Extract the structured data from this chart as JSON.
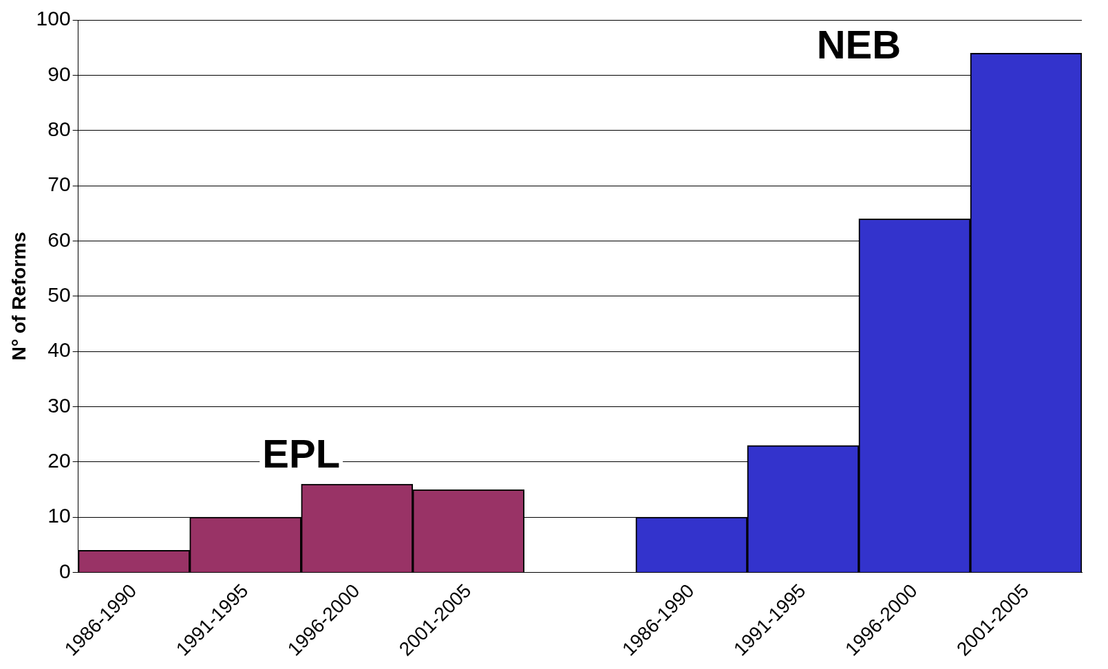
{
  "chart_data": {
    "type": "bar",
    "ylabel": "N° of Reforms",
    "categories": [
      "1986-1990",
      "1991-1995",
      "1996-2000",
      "2001-2005",
      null,
      "1986-1990",
      "1991-1995",
      "1996-2000",
      "2001-2005"
    ],
    "series": [
      {
        "name": "EPL",
        "color": "#993366",
        "values": [
          4,
          10,
          16,
          15,
          null,
          null,
          null,
          null,
          null
        ]
      },
      {
        "name": "NEB",
        "color": "#3333cc",
        "values": [
          null,
          null,
          null,
          null,
          null,
          10,
          23,
          64,
          94
        ]
      }
    ],
    "ylim": [
      0,
      100
    ],
    "yticks": [
      0,
      10,
      20,
      30,
      40,
      50,
      60,
      70,
      80,
      90,
      100
    ],
    "grid": "y",
    "legend": false
  }
}
